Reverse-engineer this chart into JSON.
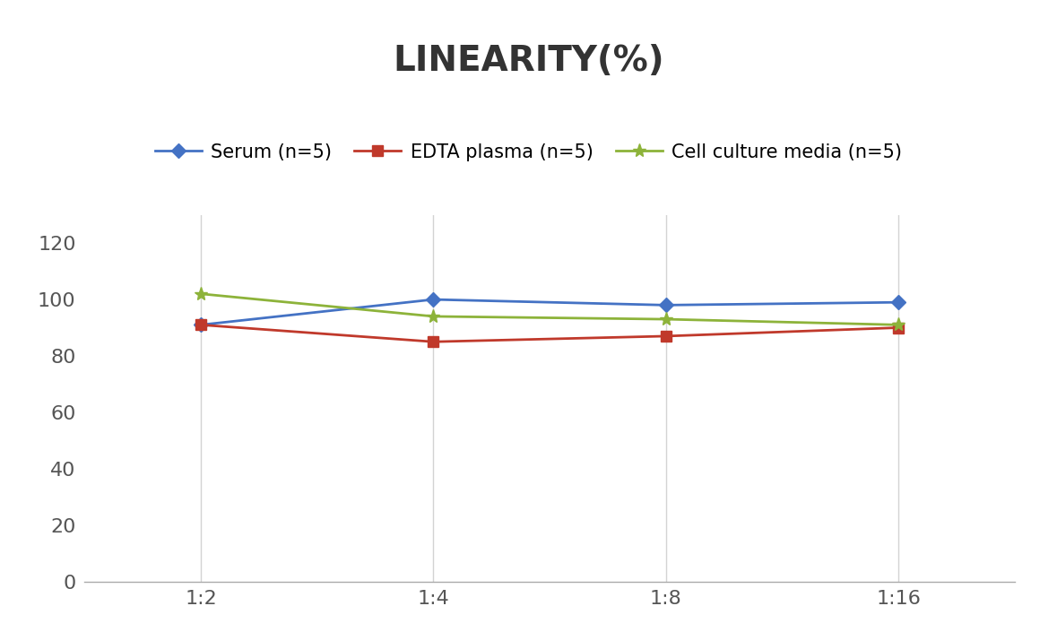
{
  "title": "LINEARITY(%)",
  "x_labels": [
    "1:2",
    "1:4",
    "1:8",
    "1:16"
  ],
  "x_positions": [
    0,
    1,
    2,
    3
  ],
  "series": [
    {
      "name": "Serum (n=5)",
      "values": [
        91,
        100,
        98,
        99
      ],
      "color": "#4472C4",
      "marker": "D",
      "markersize": 8,
      "linewidth": 2.0
    },
    {
      "name": "EDTA plasma (n=5)",
      "values": [
        91,
        85,
        87,
        90
      ],
      "color": "#C0392B",
      "marker": "s",
      "markersize": 8,
      "linewidth": 2.0
    },
    {
      "name": "Cell culture media (n=5)",
      "values": [
        102,
        94,
        93,
        91
      ],
      "color": "#8DB33A",
      "marker": "*",
      "markersize": 11,
      "linewidth": 2.0
    }
  ],
  "ylim": [
    0,
    130
  ],
  "yticks": [
    0,
    20,
    40,
    60,
    80,
    100,
    120
  ],
  "title_fontsize": 28,
  "legend_fontsize": 15,
  "tick_fontsize": 16,
  "background_color": "#ffffff",
  "grid_color": "#d3d3d3",
  "title_color": "#333333",
  "tick_color": "#555555"
}
